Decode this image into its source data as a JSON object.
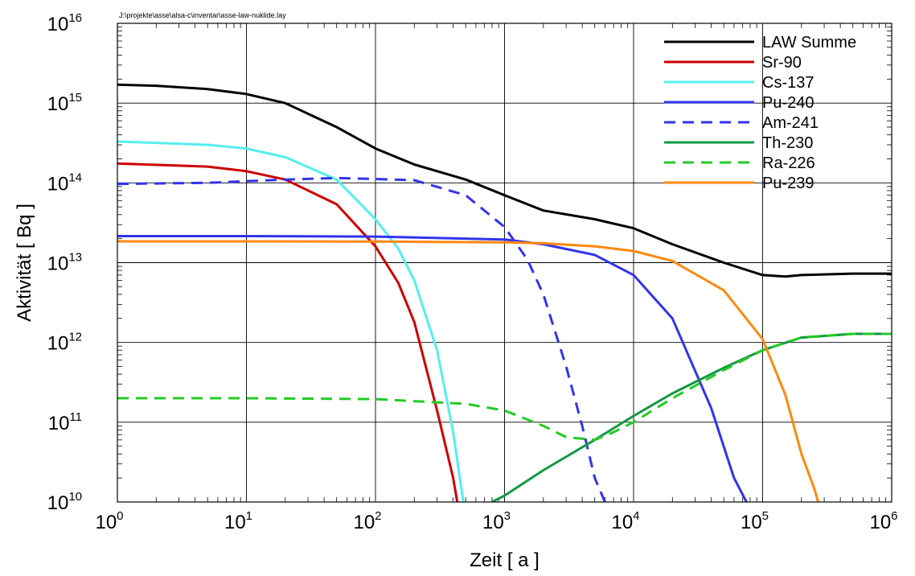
{
  "chart_data": {
    "type": "line",
    "file_path": "J:\\projekte\\asse\\alsa-c\\inventar\\asse-law-nuklide.lay",
    "xlabel": "Zeit [ a ]",
    "ylabel": "Aktivität [ Bq ]",
    "xscale": "log",
    "yscale": "log",
    "xlim": [
      1,
      1000000
    ],
    "ylim": [
      10000000000.0,
      1e+16
    ],
    "x_tick_exponents": [
      "0",
      "1",
      "2",
      "3",
      "4",
      "5",
      "6"
    ],
    "y_tick_exponents": [
      "10",
      "11",
      "12",
      "13",
      "14",
      "15",
      "16"
    ],
    "tick_base": "10",
    "grid": true,
    "legend_position": "top-right",
    "series": [
      {
        "name": "LAW Summe",
        "color": "#000000",
        "dash": "solid",
        "x": [
          1,
          2,
          5,
          10,
          20,
          50,
          100,
          200,
          500,
          1000,
          2000,
          5000,
          10000,
          20000,
          50000,
          100000,
          150000,
          200000,
          500000,
          1000000
        ],
        "y": [
          1700000000000000.0,
          1650000000000000.0,
          1500000000000000.0,
          1300000000000000.0,
          1000000000000000.0,
          500000000000000.0,
          270000000000000.0,
          170000000000000.0,
          110000000000000.0,
          70000000000000.0,
          45000000000000.0,
          35000000000000.0,
          27000000000000.0,
          17000000000000.0,
          10000000000000.0,
          7000000000000.0,
          6700000000000.0,
          7000000000000.0,
          7300000000000.0,
          7300000000000.0
        ]
      },
      {
        "name": "Sr-90",
        "color": "#cc0000",
        "dash": "solid",
        "x": [
          1,
          5,
          10,
          20,
          50,
          100,
          150,
          200,
          300,
          400,
          430
        ],
        "y": [
          175000000000000.0,
          160000000000000.0,
          140000000000000.0,
          110000000000000.0,
          54000000000000.0,
          16000000000000.0,
          5600000000000.0,
          1800000000000.0,
          140000000000.0,
          20000000000.0,
          10000000000.0
        ]
      },
      {
        "name": "Cs-137",
        "color": "#55eeee",
        "dash": "solid",
        "x": [
          1,
          5,
          10,
          20,
          50,
          100,
          150,
          200,
          300,
          400,
          480
        ],
        "y": [
          330000000000000.0,
          300000000000000.0,
          270000000000000.0,
          210000000000000.0,
          110000000000000.0,
          35000000000000.0,
          15000000000000.0,
          6000000000000.0,
          800000000000.0,
          75000000000.0,
          10000000000.0
        ]
      },
      {
        "name": "Pu-240",
        "color": "#3333ee",
        "dash": "solid",
        "x": [
          1,
          10,
          100,
          1000,
          2000,
          5000,
          10000,
          20000,
          40000,
          60000,
          75000
        ],
        "y": [
          21500000000000.0,
          21500000000000.0,
          21200000000000.0,
          19500000000000.0,
          17000000000000.0,
          12500000000000.0,
          7000000000000.0,
          2000000000000.0,
          150000000000.0,
          20000000000.0,
          10000000000.0
        ]
      },
      {
        "name": "Am-241",
        "color": "#3333ee",
        "dash": "dashed",
        "x": [
          1,
          5,
          10,
          20,
          50,
          100,
          200,
          500,
          1000,
          1500,
          2000,
          3000,
          4000,
          5000,
          6000
        ],
        "y": [
          97000000000000.0,
          100000000000000.0,
          105000000000000.0,
          110000000000000.0,
          115000000000000.0,
          112000000000000.0,
          108000000000000.0,
          70000000000000.0,
          28000000000000.0,
          11000000000000.0,
          4000000000000.0,
          500000000000.0,
          90000000000.0,
          20000000000.0,
          10000000000.0
        ]
      },
      {
        "name": "Th-230",
        "color": "#119944",
        "dash": "solid",
        "x": [
          800,
          1000,
          2000,
          5000,
          10000,
          20000,
          50000,
          100000,
          200000,
          500000,
          1000000
        ],
        "y": [
          10000000000.0,
          12000000000.0,
          25000000000.0,
          60000000000.0,
          120000000000.0,
          230000000000.0,
          480000000000.0,
          800000000000.0,
          1150000000000.0,
          1280000000000.0,
          1280000000000.0
        ]
      },
      {
        "name": "Ra-226",
        "color": "#22cc22",
        "dash": "dashed",
        "x": [
          1,
          10,
          100,
          500,
          1000,
          2000,
          3000,
          5000,
          7000,
          10000,
          20000,
          50000,
          100000,
          200000,
          500000,
          1000000
        ],
        "y": [
          200000000000.0,
          200000000000.0,
          195000000000.0,
          170000000000.0,
          140000000000.0,
          90000000000.0,
          65000000000.0,
          60000000000.0,
          75000000000.0,
          100000000000.0,
          200000000000.0,
          450000000000.0,
          800000000000.0,
          1150000000000.0,
          1280000000000.0,
          1280000000000.0
        ]
      },
      {
        "name": "Pu-239",
        "color": "#ff8811",
        "dash": "solid",
        "x": [
          1,
          10,
          100,
          1000,
          2000,
          5000,
          10000,
          20000,
          50000,
          100000,
          150000,
          200000,
          250000,
          270000
        ],
        "y": [
          18500000000000.0,
          18500000000000.0,
          18400000000000.0,
          18000000000000.0,
          17500000000000.0,
          16000000000000.0,
          14000000000000.0,
          10500000000000.0,
          4500000000000.0,
          1100000000000.0,
          220000000000.0,
          40000000000.0,
          15000000000.0,
          10000000000.0
        ]
      }
    ]
  }
}
